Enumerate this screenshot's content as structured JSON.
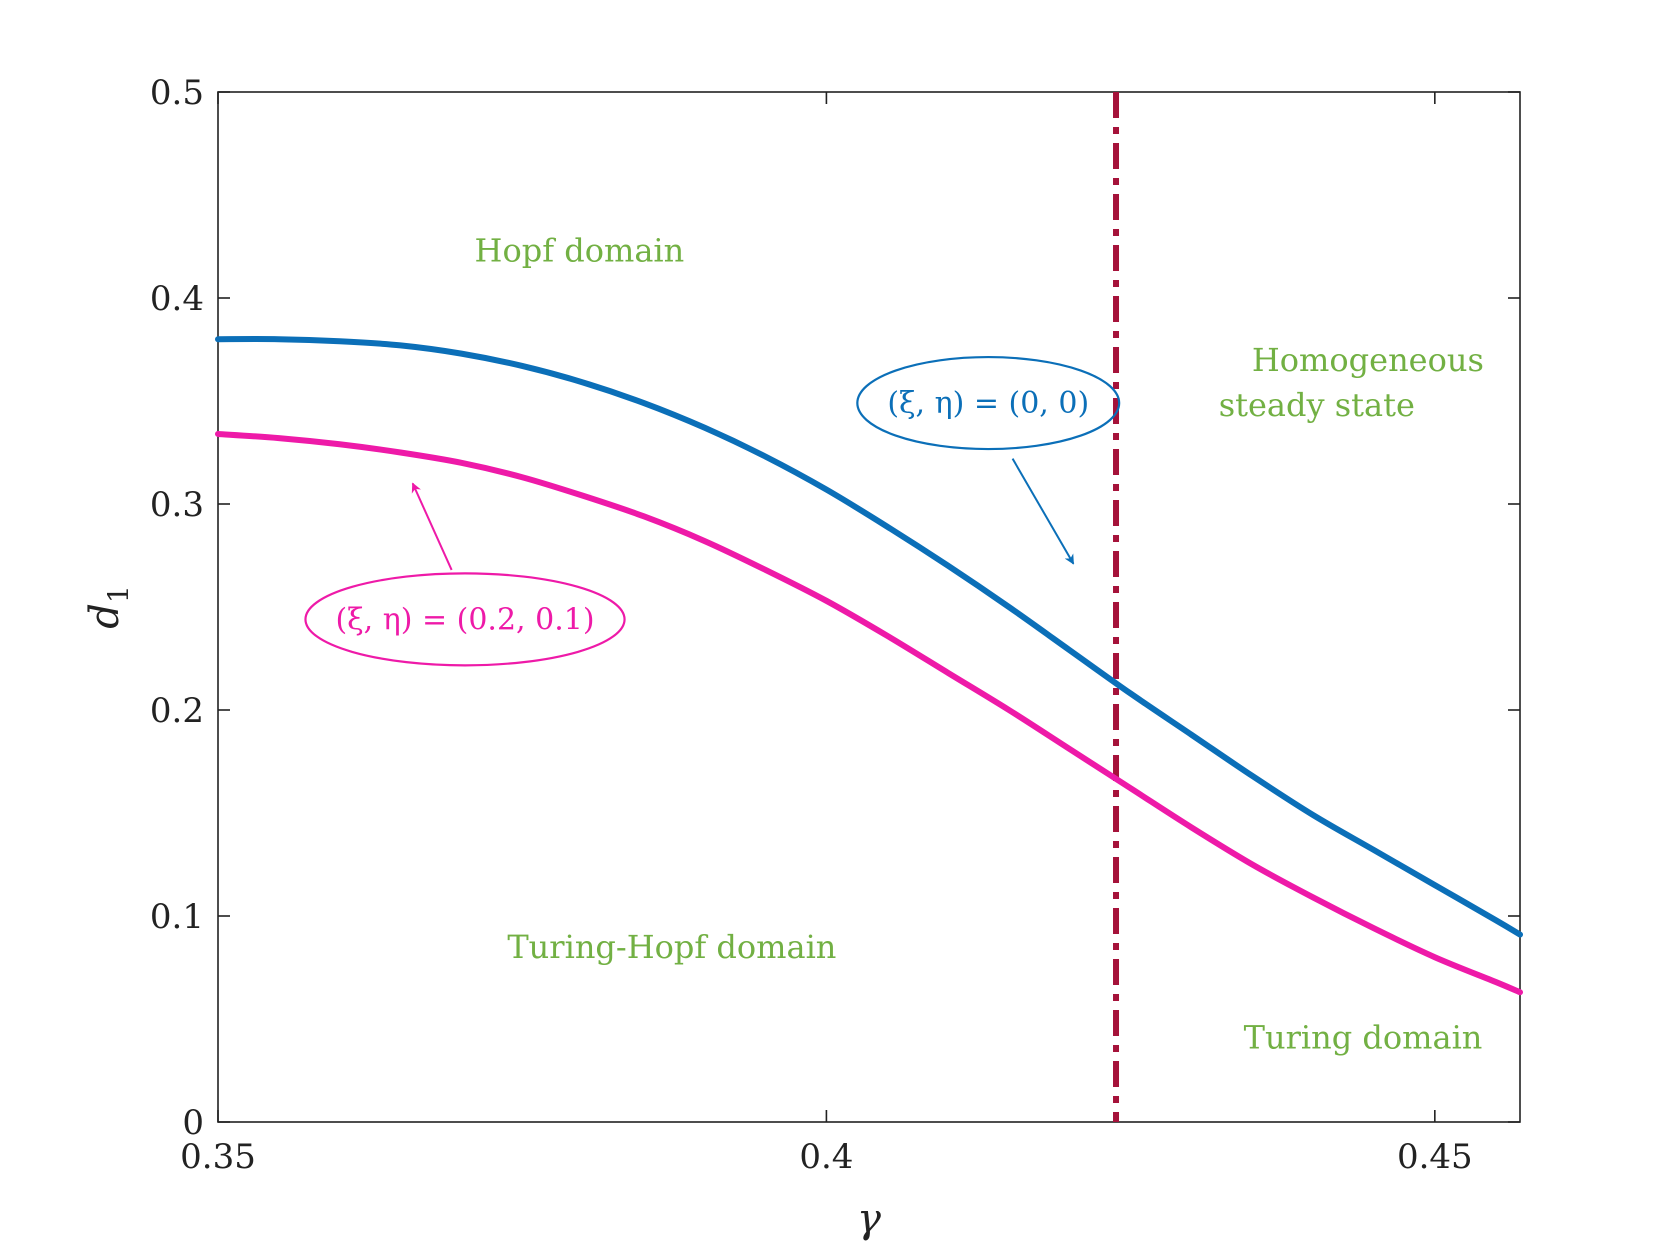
{
  "chart_data": {
    "type": "line",
    "xlabel": "γ",
    "ylabel": "d",
    "ylabel_subscript": "1",
    "xlim": [
      0.35,
      0.457
    ],
    "ylim": [
      0,
      0.5
    ],
    "x_ticks": [
      0.35,
      0.4,
      0.45
    ],
    "x_tick_labels": [
      "0.35",
      "0.4",
      "0.45"
    ],
    "y_ticks": [
      0,
      0.1,
      0.2,
      0.3,
      0.4,
      0.5
    ],
    "y_tick_labels": [
      "0",
      "0.1",
      "0.2",
      "0.3",
      "0.4",
      "0.5"
    ],
    "grid": false,
    "colors": {
      "series_blue": "#0b6fb8",
      "series_pink": "#ee1aa8",
      "threshold": "#a5123a",
      "region_text": "#72b043",
      "axis": "#222222"
    },
    "series": [
      {
        "label": "(ξ, η) = (0, 0)",
        "color": "#0b6fb8",
        "x": [
          0.35,
          0.355,
          0.36,
          0.365,
          0.37,
          0.375,
          0.38,
          0.385,
          0.39,
          0.395,
          0.4,
          0.405,
          0.41,
          0.415,
          0.42,
          0.425,
          0.43,
          0.435,
          0.44,
          0.445,
          0.45,
          0.455,
          0.457
        ],
        "y": [
          0.38,
          0.38,
          0.379,
          0.377,
          0.373,
          0.367,
          0.359,
          0.349,
          0.337,
          0.323,
          0.307,
          0.289,
          0.27,
          0.25,
          0.229,
          0.208,
          0.188,
          0.168,
          0.149,
          0.132,
          0.115,
          0.098,
          0.091
        ]
      },
      {
        "label": "(ξ, η) = (0.2, 0.1)",
        "color": "#ee1aa8",
        "x": [
          0.35,
          0.355,
          0.36,
          0.365,
          0.37,
          0.375,
          0.38,
          0.385,
          0.39,
          0.395,
          0.4,
          0.405,
          0.41,
          0.415,
          0.42,
          0.425,
          0.43,
          0.435,
          0.44,
          0.445,
          0.45,
          0.455,
          0.457
        ],
        "y": [
          0.334,
          0.332,
          0.329,
          0.325,
          0.32,
          0.313,
          0.304,
          0.294,
          0.282,
          0.268,
          0.253,
          0.236,
          0.218,
          0.2,
          0.181,
          0.162,
          0.143,
          0.125,
          0.109,
          0.094,
          0.08,
          0.068,
          0.063
        ]
      }
    ],
    "threshold_x": 0.4238,
    "regions": [
      {
        "text": "Hopf domain",
        "x": 0.3797,
        "y": 0.423
      },
      {
        "text": "Turing-Hopf domain",
        "x": 0.3873,
        "y": 0.085
      },
      {
        "text": "Turing domain",
        "x": 0.4441,
        "y": 0.041
      },
      {
        "text": "Homogeneous",
        "x": 0.4445,
        "y": 0.37
      },
      {
        "text": "steady state",
        "x": 0.4403,
        "y": 0.348
      }
    ],
    "annotations": [
      {
        "label": "(ξ, η) = (0, 0)",
        "color": "#0b6fb8",
        "label_x": 0.4133,
        "label_y": 0.349,
        "arrow_from_x": 0.4153,
        "arrow_from_y": 0.322,
        "arrow_to_x": 0.4203,
        "arrow_to_y": 0.271
      },
      {
        "label": "(ξ, η) = (0.2, 0.1)",
        "color": "#ee1aa8",
        "label_x": 0.3703,
        "label_y": 0.244,
        "arrow_from_x": 0.3692,
        "arrow_from_y": 0.268,
        "arrow_to_x": 0.366,
        "arrow_to_y": 0.31
      }
    ]
  }
}
